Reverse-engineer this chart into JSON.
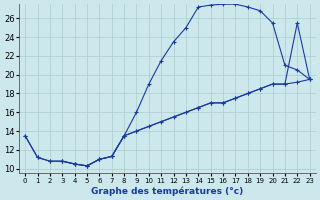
{
  "xlabel": "Graphe des températures (°c)",
  "xlim": [
    -0.5,
    23.5
  ],
  "ylim": [
    9.5,
    27.5
  ],
  "yticks": [
    10,
    12,
    14,
    16,
    18,
    20,
    22,
    24,
    26
  ],
  "xticks": [
    0,
    1,
    2,
    3,
    4,
    5,
    6,
    7,
    8,
    9,
    10,
    11,
    12,
    13,
    14,
    15,
    16,
    17,
    18,
    19,
    20,
    21,
    22,
    23
  ],
  "bg_color": "#cce8ed",
  "line_color": "#1a3a9e",
  "grid_color": "#aacccc",
  "line1_x": [
    0,
    1,
    2,
    3,
    4,
    5,
    6,
    7,
    8,
    9,
    10,
    11,
    12,
    13,
    14,
    15,
    16,
    17,
    18,
    19,
    20,
    21,
    22,
    23
  ],
  "line1_y": [
    13.5,
    11.2,
    10.8,
    10.8,
    10.5,
    10.3,
    11.0,
    11.3,
    13.5,
    16.0,
    19.0,
    21.5,
    23.5,
    25.0,
    27.2,
    27.4,
    27.5,
    27.5,
    27.2,
    26.8,
    25.5,
    21.0,
    20.5,
    19.5
  ],
  "line2_x": [
    0,
    1,
    2,
    3,
    4,
    5,
    6,
    7,
    8,
    9,
    10,
    11,
    12,
    13,
    14,
    15,
    16,
    17,
    18,
    19,
    20,
    21,
    22,
    23
  ],
  "line2_y": [
    13.5,
    11.2,
    10.8,
    10.8,
    10.5,
    10.3,
    11.0,
    11.3,
    13.5,
    14.0,
    14.5,
    15.0,
    15.5,
    16.0,
    16.5,
    17.0,
    17.0,
    17.5,
    18.0,
    18.5,
    19.0,
    19.0,
    19.2,
    19.5
  ],
  "line3_x": [
    3,
    4,
    5,
    6,
    7,
    8,
    9,
    14,
    15,
    16,
    17,
    18,
    19,
    20,
    21,
    22,
    23
  ],
  "line3_y": [
    10.8,
    10.5,
    10.3,
    11.0,
    11.3,
    13.5,
    14.0,
    16.5,
    17.0,
    17.0,
    17.5,
    18.0,
    18.5,
    19.0,
    19.0,
    25.5,
    19.5
  ]
}
